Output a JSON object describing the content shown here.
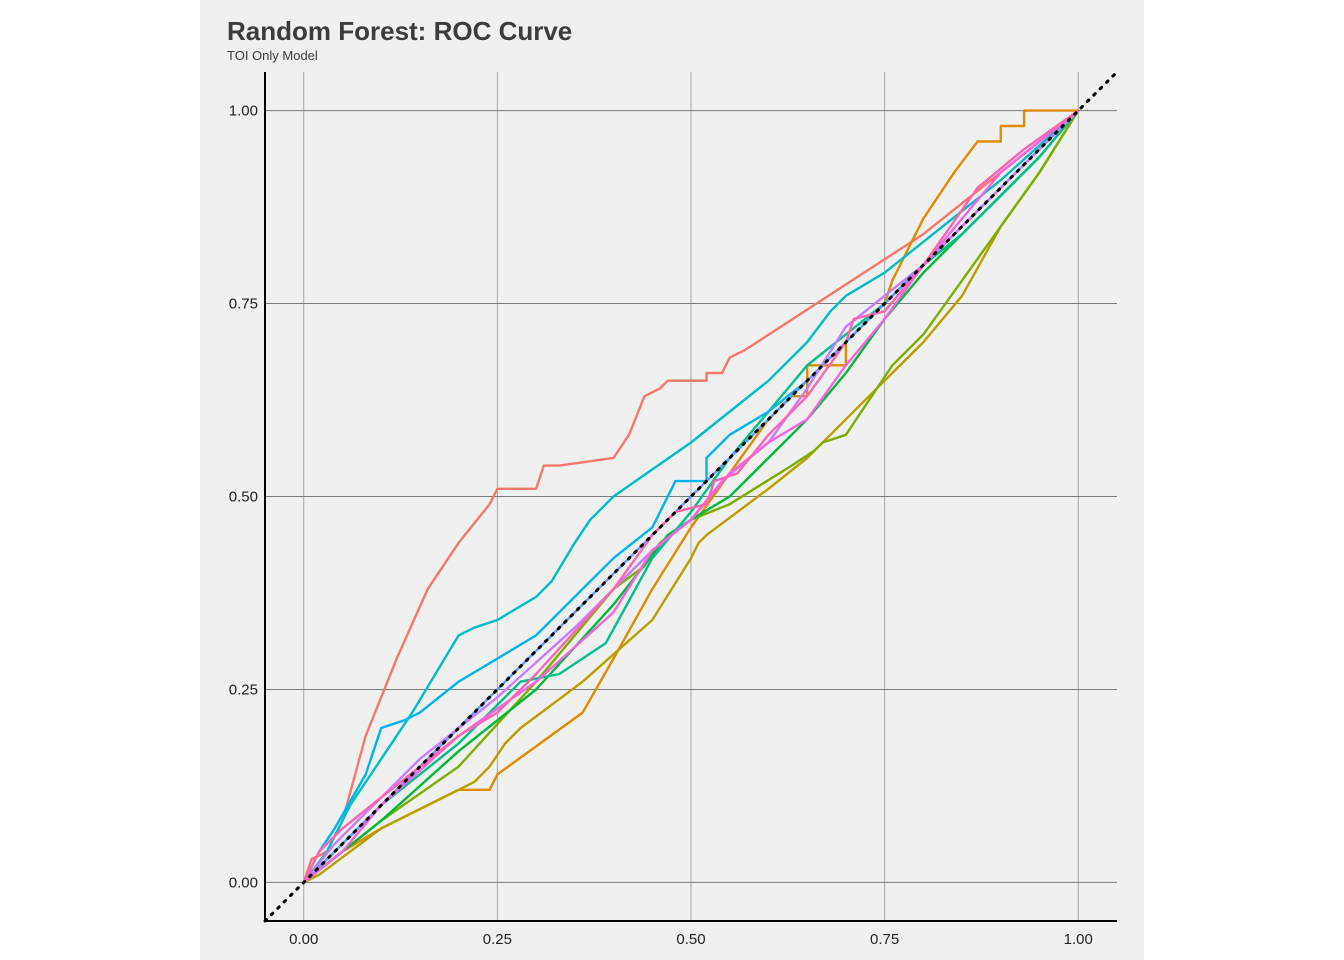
{
  "chart_data": {
    "type": "line",
    "title": "Random Forest: ROC Curve",
    "subtitle": "TOI Only Model",
    "xlabel": "",
    "ylabel": "",
    "xlim": [
      -0.05,
      1.05
    ],
    "ylim": [
      -0.05,
      1.05
    ],
    "x_ticks": [
      "0.00",
      "0.25",
      "0.50",
      "0.75",
      "1.00"
    ],
    "y_ticks": [
      "0.00",
      "0.25",
      "0.50",
      "0.75",
      "1.00"
    ],
    "grid": true,
    "legend": "none",
    "reference_line": {
      "style": "dotted",
      "color": "#000000",
      "points": [
        [
          -0.05,
          -0.05
        ],
        [
          1.05,
          1.05
        ]
      ]
    },
    "series": [
      {
        "color": "#F8766D",
        "points": [
          [
            0,
            0
          ],
          [
            0.01,
            0.03
          ],
          [
            0.03,
            0.04
          ],
          [
            0.05,
            0.08
          ],
          [
            0.08,
            0.19
          ],
          [
            0.12,
            0.29
          ],
          [
            0.16,
            0.38
          ],
          [
            0.2,
            0.44
          ],
          [
            0.24,
            0.49
          ],
          [
            0.25,
            0.51
          ],
          [
            0.3,
            0.51
          ],
          [
            0.31,
            0.54
          ],
          [
            0.33,
            0.54
          ],
          [
            0.4,
            0.55
          ],
          [
            0.42,
            0.58
          ],
          [
            0.44,
            0.63
          ],
          [
            0.46,
            0.64
          ],
          [
            0.47,
            0.65
          ],
          [
            0.52,
            0.65
          ],
          [
            0.52,
            0.66
          ],
          [
            0.54,
            0.66
          ],
          [
            0.55,
            0.68
          ],
          [
            0.57,
            0.69
          ],
          [
            0.8,
            0.84
          ],
          [
            1,
            1
          ]
        ]
      },
      {
        "color": "#DE8C00",
        "points": [
          [
            0,
            0
          ],
          [
            0.05,
            0.04
          ],
          [
            0.1,
            0.07
          ],
          [
            0.2,
            0.12
          ],
          [
            0.24,
            0.12
          ],
          [
            0.25,
            0.14
          ],
          [
            0.36,
            0.22
          ],
          [
            0.4,
            0.29
          ],
          [
            0.45,
            0.38
          ],
          [
            0.5,
            0.46
          ],
          [
            0.55,
            0.53
          ],
          [
            0.6,
            0.6
          ],
          [
            0.63,
            0.63
          ],
          [
            0.65,
            0.63
          ],
          [
            0.65,
            0.67
          ],
          [
            0.7,
            0.67
          ],
          [
            0.7,
            0.7
          ],
          [
            0.75,
            0.75
          ],
          [
            0.76,
            0.78
          ],
          [
            0.78,
            0.82
          ],
          [
            0.8,
            0.86
          ],
          [
            0.84,
            0.92
          ],
          [
            0.87,
            0.96
          ],
          [
            0.9,
            0.96
          ],
          [
            0.9,
            0.98
          ],
          [
            0.93,
            0.98
          ],
          [
            0.93,
            1
          ],
          [
            1,
            1
          ]
        ]
      },
      {
        "color": "#B79F00",
        "points": [
          [
            0,
            0
          ],
          [
            0.02,
            0.01
          ],
          [
            0.1,
            0.07
          ],
          [
            0.2,
            0.12
          ],
          [
            0.22,
            0.13
          ],
          [
            0.24,
            0.15
          ],
          [
            0.26,
            0.18
          ],
          [
            0.28,
            0.2
          ],
          [
            0.32,
            0.23
          ],
          [
            0.36,
            0.26
          ],
          [
            0.45,
            0.34
          ],
          [
            0.5,
            0.42
          ],
          [
            0.51,
            0.44
          ],
          [
            0.52,
            0.45
          ],
          [
            0.6,
            0.51
          ],
          [
            0.65,
            0.55
          ],
          [
            0.7,
            0.6
          ],
          [
            0.75,
            0.65
          ],
          [
            0.8,
            0.7
          ],
          [
            0.85,
            0.76
          ],
          [
            0.9,
            0.85
          ],
          [
            0.95,
            0.92
          ],
          [
            1,
            1
          ]
        ]
      },
      {
        "color": "#7CAE00",
        "points": [
          [
            0,
            0
          ],
          [
            0.05,
            0.04
          ],
          [
            0.1,
            0.08
          ],
          [
            0.2,
            0.15
          ],
          [
            0.3,
            0.26
          ],
          [
            0.4,
            0.38
          ],
          [
            0.44,
            0.41
          ],
          [
            0.46,
            0.44
          ],
          [
            0.5,
            0.47
          ],
          [
            0.55,
            0.49
          ],
          [
            0.63,
            0.54
          ],
          [
            0.66,
            0.56
          ],
          [
            0.67,
            0.57
          ],
          [
            0.7,
            0.58
          ],
          [
            0.72,
            0.61
          ],
          [
            0.74,
            0.64
          ],
          [
            0.76,
            0.67
          ],
          [
            0.8,
            0.71
          ],
          [
            0.9,
            0.85
          ],
          [
            0.95,
            0.92
          ],
          [
            1,
            1
          ]
        ]
      },
      {
        "color": "#00BA38",
        "points": [
          [
            0,
            0
          ],
          [
            0.1,
            0.08
          ],
          [
            0.2,
            0.17
          ],
          [
            0.3,
            0.25
          ],
          [
            0.4,
            0.36
          ],
          [
            0.47,
            0.45
          ],
          [
            0.5,
            0.47
          ],
          [
            0.55,
            0.5
          ],
          [
            0.6,
            0.55
          ],
          [
            0.65,
            0.6
          ],
          [
            0.7,
            0.66
          ],
          [
            0.75,
            0.73
          ],
          [
            0.8,
            0.79
          ],
          [
            0.85,
            0.84
          ],
          [
            0.9,
            0.89
          ],
          [
            0.95,
            0.94
          ],
          [
            1,
            1
          ]
        ]
      },
      {
        "color": "#00C08B",
        "points": [
          [
            0,
            0
          ],
          [
            0.1,
            0.1
          ],
          [
            0.2,
            0.18
          ],
          [
            0.28,
            0.26
          ],
          [
            0.33,
            0.27
          ],
          [
            0.39,
            0.31
          ],
          [
            0.45,
            0.42
          ],
          [
            0.5,
            0.48
          ],
          [
            0.55,
            0.55
          ],
          [
            0.6,
            0.61
          ],
          [
            0.65,
            0.67
          ],
          [
            0.7,
            0.71
          ],
          [
            0.75,
            0.75
          ],
          [
            0.8,
            0.8
          ],
          [
            0.85,
            0.84
          ],
          [
            0.9,
            0.89
          ],
          [
            0.95,
            0.94
          ],
          [
            1,
            1
          ]
        ]
      },
      {
        "color": "#00BFC4",
        "points": [
          [
            0,
            0
          ],
          [
            0.03,
            0.04
          ],
          [
            0.06,
            0.1
          ],
          [
            0.1,
            0.16
          ],
          [
            0.14,
            0.22
          ],
          [
            0.17,
            0.27
          ],
          [
            0.2,
            0.32
          ],
          [
            0.22,
            0.33
          ],
          [
            0.25,
            0.34
          ],
          [
            0.3,
            0.37
          ],
          [
            0.32,
            0.39
          ],
          [
            0.35,
            0.44
          ],
          [
            0.37,
            0.47
          ],
          [
            0.4,
            0.5
          ],
          [
            0.5,
            0.57
          ],
          [
            0.6,
            0.65
          ],
          [
            0.65,
            0.7
          ],
          [
            0.68,
            0.74
          ],
          [
            0.7,
            0.76
          ],
          [
            0.75,
            0.79
          ],
          [
            0.8,
            0.83
          ],
          [
            0.9,
            0.91
          ],
          [
            1,
            1
          ]
        ]
      },
      {
        "color": "#00B4F0",
        "points": [
          [
            0,
            0
          ],
          [
            0.02,
            0.04
          ],
          [
            0.04,
            0.07
          ],
          [
            0.08,
            0.14
          ],
          [
            0.1,
            0.2
          ],
          [
            0.13,
            0.21
          ],
          [
            0.15,
            0.22
          ],
          [
            0.2,
            0.26
          ],
          [
            0.3,
            0.32
          ],
          [
            0.4,
            0.42
          ],
          [
            0.45,
            0.46
          ],
          [
            0.48,
            0.52
          ],
          [
            0.52,
            0.52
          ],
          [
            0.52,
            0.55
          ],
          [
            0.55,
            0.58
          ],
          [
            0.6,
            0.61
          ],
          [
            0.65,
            0.65
          ],
          [
            0.7,
            0.7
          ],
          [
            0.8,
            0.8
          ],
          [
            0.9,
            0.9
          ],
          [
            1,
            1
          ]
        ]
      },
      {
        "color": "#619CFF",
        "points": [
          [
            0,
            0
          ],
          [
            0.1,
            0.1
          ],
          [
            0.2,
            0.2
          ],
          [
            0.3,
            0.3
          ],
          [
            0.4,
            0.4
          ],
          [
            0.5,
            0.5
          ],
          [
            0.6,
            0.6
          ],
          [
            0.7,
            0.7
          ],
          [
            0.8,
            0.8
          ],
          [
            0.9,
            0.9
          ],
          [
            1,
            1
          ]
        ]
      },
      {
        "color": "#C77CFF",
        "points": [
          [
            0,
            0
          ],
          [
            0.04,
            0.05
          ],
          [
            0.08,
            0.09
          ],
          [
            0.15,
            0.16
          ],
          [
            0.25,
            0.24
          ],
          [
            0.35,
            0.33
          ],
          [
            0.45,
            0.43
          ],
          [
            0.5,
            0.47
          ],
          [
            0.54,
            0.52
          ],
          [
            0.6,
            0.57
          ],
          [
            0.65,
            0.64
          ],
          [
            0.7,
            0.72
          ],
          [
            0.75,
            0.76
          ],
          [
            0.8,
            0.8
          ],
          [
            0.85,
            0.85
          ],
          [
            0.9,
            0.9
          ],
          [
            0.95,
            0.95
          ],
          [
            1,
            1
          ]
        ]
      },
      {
        "color": "#F564E3",
        "points": [
          [
            0,
            0
          ],
          [
            0.05,
            0.04
          ],
          [
            0.1,
            0.1
          ],
          [
            0.2,
            0.19
          ],
          [
            0.3,
            0.26
          ],
          [
            0.4,
            0.35
          ],
          [
            0.45,
            0.43
          ],
          [
            0.5,
            0.47
          ],
          [
            0.55,
            0.53
          ],
          [
            0.6,
            0.57
          ],
          [
            0.65,
            0.6
          ],
          [
            0.7,
            0.67
          ],
          [
            0.75,
            0.73
          ],
          [
            0.8,
            0.8
          ],
          [
            0.85,
            0.86
          ],
          [
            0.9,
            0.92
          ],
          [
            0.95,
            0.96
          ],
          [
            1,
            1
          ]
        ]
      },
      {
        "color": "#FF64B0",
        "points": [
          [
            0,
            0
          ],
          [
            0.02,
            0.04
          ],
          [
            0.05,
            0.07
          ],
          [
            0.1,
            0.11
          ],
          [
            0.2,
            0.19
          ],
          [
            0.25,
            0.22
          ],
          [
            0.3,
            0.27
          ],
          [
            0.4,
            0.38
          ],
          [
            0.45,
            0.45
          ],
          [
            0.48,
            0.48
          ],
          [
            0.52,
            0.49
          ],
          [
            0.53,
            0.52
          ],
          [
            0.56,
            0.53
          ],
          [
            0.6,
            0.58
          ],
          [
            0.65,
            0.63
          ],
          [
            0.7,
            0.7
          ],
          [
            0.71,
            0.73
          ],
          [
            0.75,
            0.74
          ],
          [
            0.8,
            0.8
          ],
          [
            0.87,
            0.9
          ],
          [
            0.93,
            0.95
          ],
          [
            1,
            1
          ]
        ]
      }
    ]
  }
}
